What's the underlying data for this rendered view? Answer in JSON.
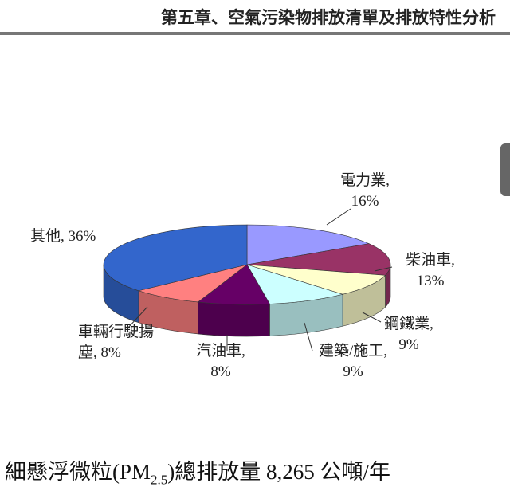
{
  "header": {
    "title": "第五章、空氣污染物排放清單及排放特性分析"
  },
  "chart_data": {
    "type": "pie3d",
    "categories": [
      "電力業,",
      "柴油車,",
      "鋼鐵業,",
      "建築/施工,",
      "汽油車,",
      "車輛行駛揚塵,",
      "其他,"
    ],
    "values": [
      16,
      13,
      9,
      9,
      8,
      8,
      36
    ],
    "value_labels": [
      "16%",
      "13%",
      "9%",
      "9%",
      "8%",
      "8%",
      "36%"
    ],
    "colors": [
      "#9999ff",
      "#993366",
      "#ffffcc",
      "#ccffff",
      "#660066",
      "#ff8080",
      "#3366cc"
    ]
  },
  "caption": {
    "prefix": "細懸浮微粒(PM",
    "subscript": "2.5",
    "suffix": ")總排放量 8,265 公噸/年"
  }
}
